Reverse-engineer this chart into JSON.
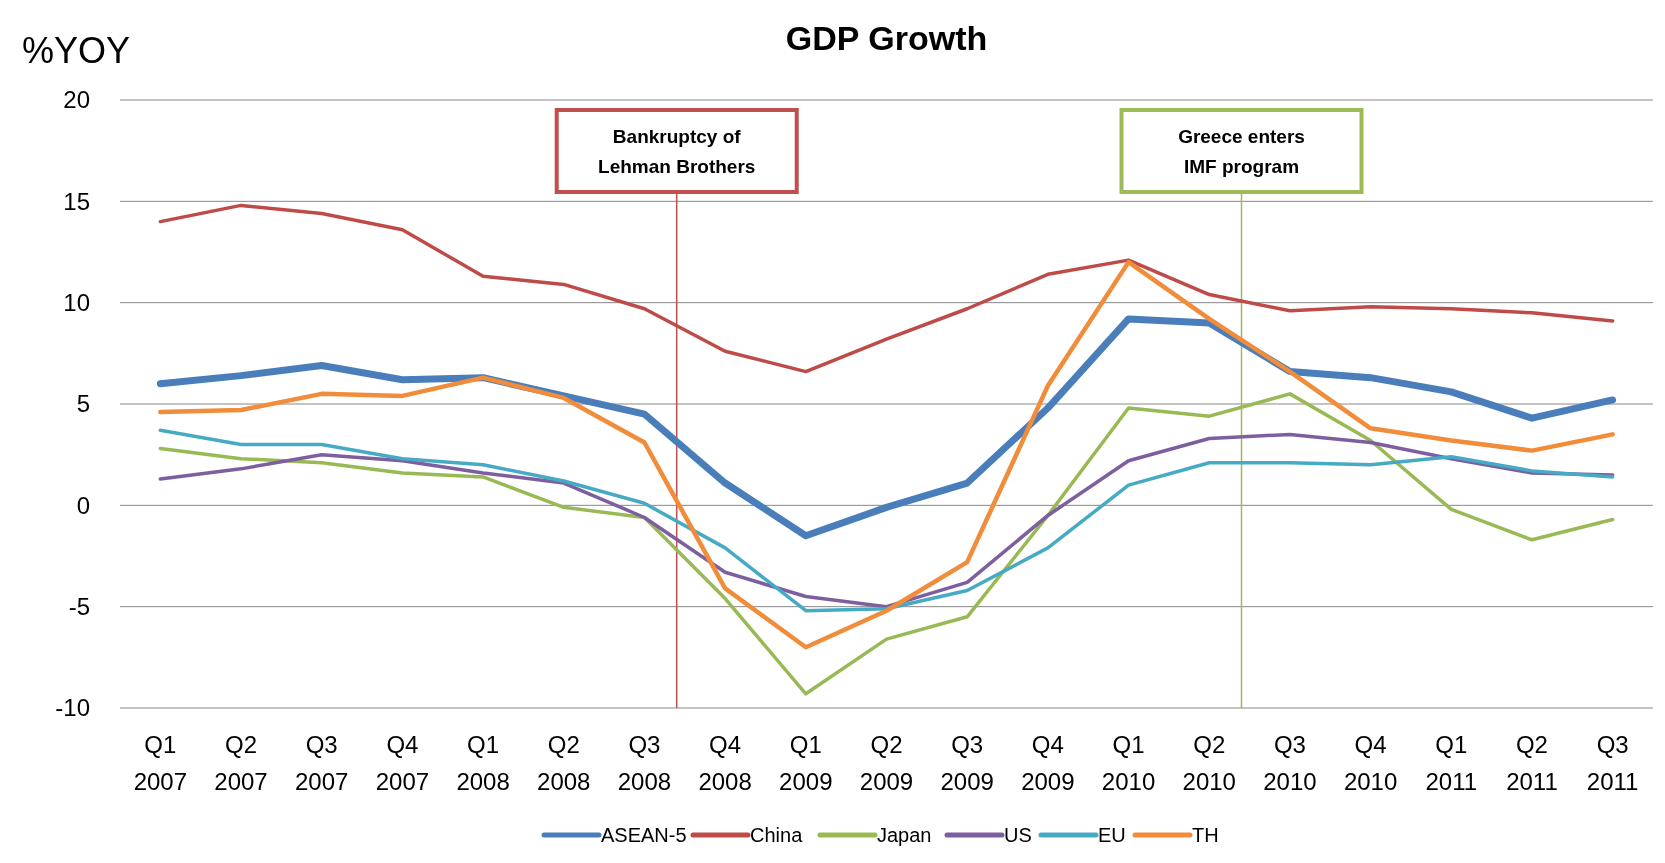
{
  "chart_data": {
    "type": "line",
    "title": "GDP Growth",
    "ylabel": "%YOY",
    "categories": [
      "Q1 2007",
      "Q2 2007",
      "Q3 2007",
      "Q4 2007",
      "Q1 2008",
      "Q2 2008",
      "Q3 2008",
      "Q4 2008",
      "Q1 2009",
      "Q2 2009",
      "Q3 2009",
      "Q4 2009",
      "Q1 2010",
      "Q2 2010",
      "Q3 2010",
      "Q4 2010",
      "Q1 2011",
      "Q2 2011",
      "Q3 2011"
    ],
    "series": [
      {
        "name": "ASEAN-5",
        "color": "#4a7ebb",
        "values": [
          6.0,
          6.4,
          6.9,
          6.2,
          6.3,
          5.4,
          4.5,
          1.1,
          -1.5,
          -0.1,
          1.1,
          4.8,
          9.2,
          9.0,
          6.6,
          6.3,
          5.6,
          4.3,
          5.2
        ]
      },
      {
        "name": "China",
        "color": "#be4b48",
        "values": [
          14.0,
          14.8,
          14.4,
          13.6,
          11.3,
          10.9,
          9.7,
          7.6,
          6.6,
          8.2,
          9.7,
          11.4,
          12.1,
          10.4,
          9.6,
          9.8,
          9.7,
          9.5,
          9.1
        ]
      },
      {
        "name": "Japan",
        "color": "#98b954",
        "values": [
          2.8,
          2.3,
          2.1,
          1.6,
          1.4,
          -0.1,
          -0.6,
          -4.6,
          -9.3,
          -6.6,
          -5.5,
          -0.5,
          4.8,
          4.4,
          5.5,
          3.2,
          -0.2,
          -1.7,
          -0.7
        ]
      },
      {
        "name": "US",
        "color": "#7d5fa0",
        "values": [
          1.3,
          1.8,
          2.5,
          2.2,
          1.6,
          1.1,
          -0.6,
          -3.3,
          -4.5,
          -5.0,
          -3.8,
          -0.5,
          2.2,
          3.3,
          3.5,
          3.1,
          2.3,
          1.6,
          1.5
        ]
      },
      {
        "name": "EU",
        "color": "#46aac5",
        "values": [
          3.7,
          3.0,
          3.0,
          2.3,
          2.0,
          1.2,
          0.1,
          -2.1,
          -5.2,
          -5.1,
          -4.2,
          -2.1,
          1.0,
          2.1,
          2.1,
          2.0,
          2.4,
          1.7,
          1.4
        ]
      },
      {
        "name": "TH",
        "color": "#f08c3a",
        "values": [
          4.6,
          4.7,
          5.5,
          5.4,
          6.3,
          5.3,
          3.1,
          -4.1,
          -7.0,
          -5.2,
          -2.8,
          5.9,
          12.0,
          9.2,
          6.6,
          3.8,
          3.2,
          2.7,
          3.5
        ]
      }
    ],
    "ylim": [
      -10,
      20
    ],
    "yticks": [
      -10,
      -5,
      0,
      5,
      10,
      15,
      20
    ],
    "grid": "y",
    "legend": "bottom",
    "marker": "none",
    "line_style": "solid",
    "ref_lines": [
      {
        "axis": "x",
        "value": "Q3 2008",
        "label": "Bankruptcy of Lehman Brothers",
        "color": "#c0504d"
      },
      {
        "axis": "x",
        "value": "Q2 2010",
        "label": "Greece enters IMF program",
        "color": "#9bbb59"
      }
    ]
  }
}
